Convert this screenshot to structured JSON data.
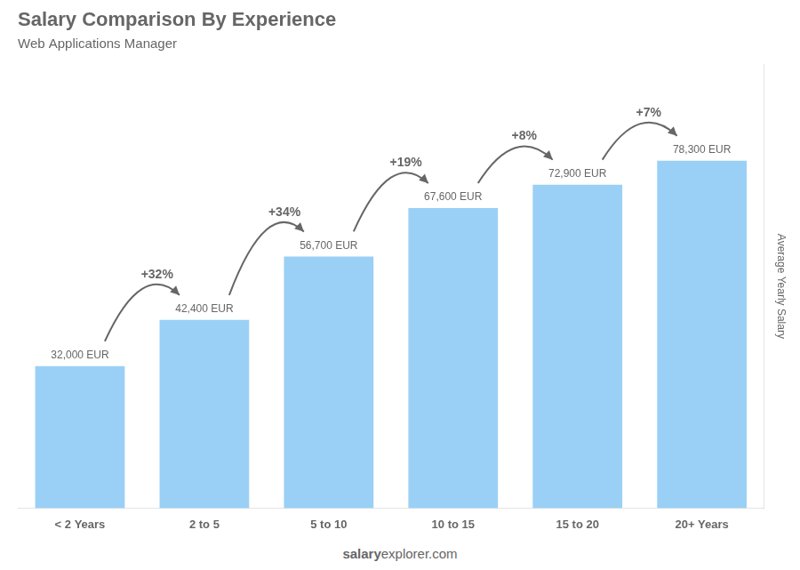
{
  "chart_data": {
    "type": "bar",
    "title": "Salary Comparison By Experience",
    "subtitle": "Web Applications Manager",
    "ylabel": "Average Yearly Salary",
    "categories": [
      "< 2 Years",
      "2 to 5",
      "5 to 10",
      "10 to 15",
      "15 to 20",
      "20+ Years"
    ],
    "values": [
      32000,
      42400,
      56700,
      67600,
      72900,
      78300
    ],
    "value_labels": [
      "32,000 EUR",
      "42,400 EUR",
      "56,700 EUR",
      "67,600 EUR",
      "72,900 EUR",
      "78,300 EUR"
    ],
    "data_labels": true,
    "annotations": [
      "+32%",
      "+34%",
      "+19%",
      "+8%",
      "+7%"
    ],
    "footer": [
      "salary",
      "explorer.com"
    ],
    "ylim": [
      0,
      100000
    ],
    "grid": false,
    "tick_labels": "x"
  }
}
